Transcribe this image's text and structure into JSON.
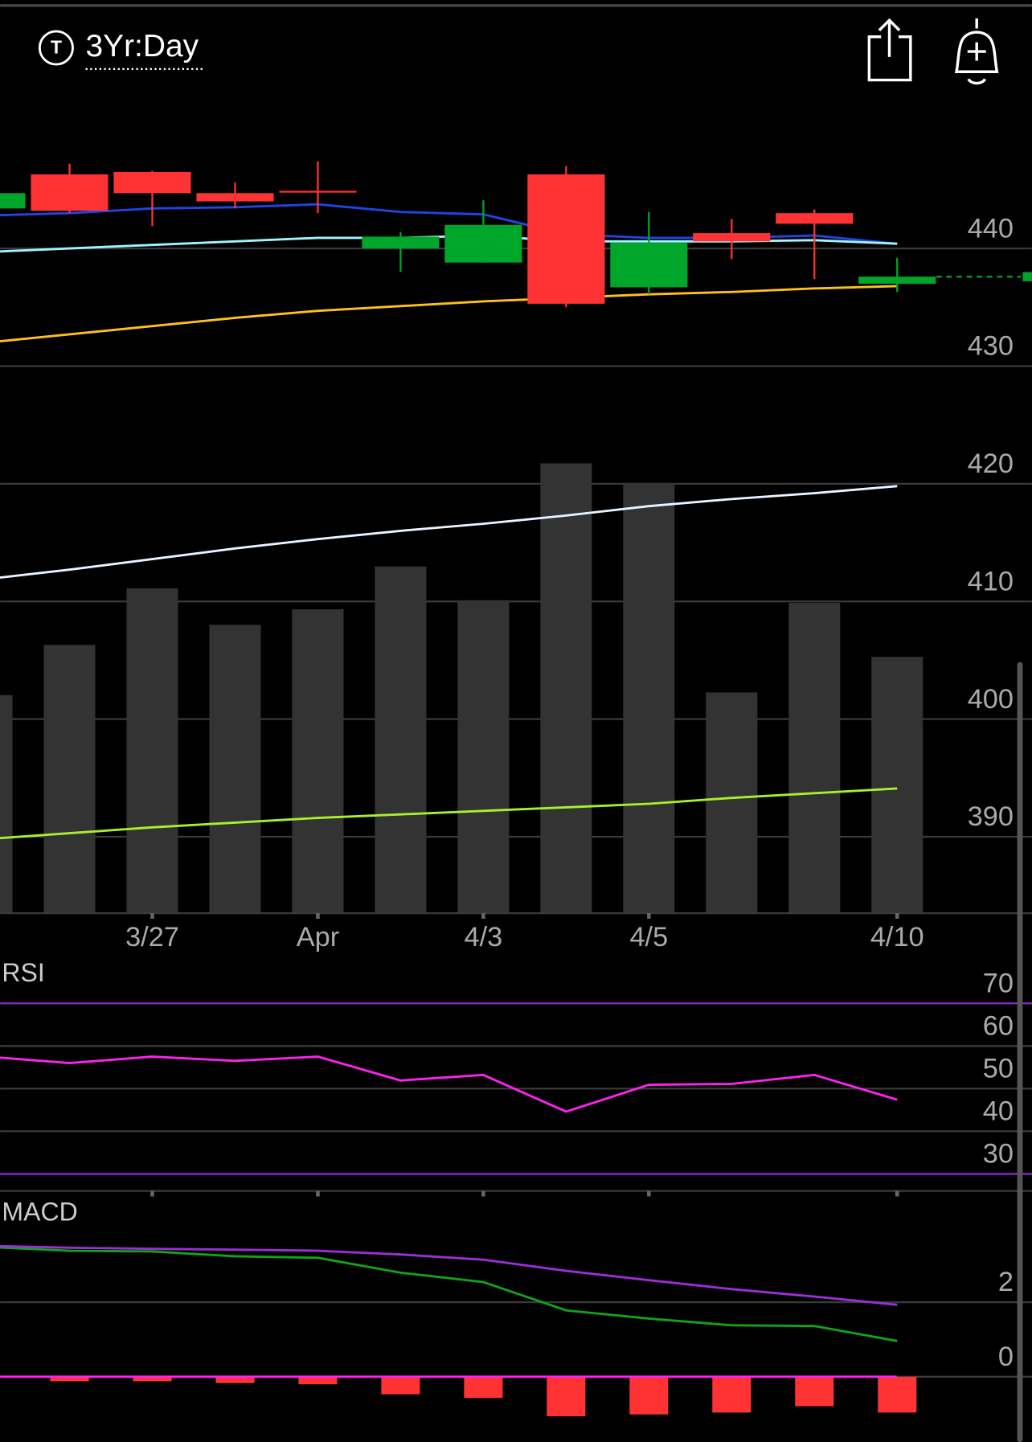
{
  "header": {
    "icon": "T",
    "period": "3Yr:Day"
  },
  "chart_data": [
    {
      "type": "candlestick",
      "categories": [
        null,
        null,
        "3/27",
        null,
        "Apr",
        null,
        "4/3",
        null,
        "4/5",
        null,
        null,
        "4/10"
      ],
      "open": [
        443.4,
        446.3,
        446.5,
        444.7,
        444.9,
        440.0,
        438.8,
        446.3,
        436.7,
        441.3,
        443.0,
        437.0
      ],
      "high": [
        444.7,
        447.2,
        446.6,
        445.6,
        447.4,
        441.4,
        444.1,
        447.0,
        443.1,
        442.5,
        443.3,
        439.2
      ],
      "low": [
        443.4,
        443.0,
        441.9,
        443.4,
        443.0,
        438.0,
        438.8,
        435.0,
        436.1,
        439.1,
        437.4,
        436.3
      ],
      "close": [
        444.7,
        443.2,
        444.7,
        444.0,
        444.8,
        441.0,
        442.0,
        435.3,
        440.5,
        440.6,
        442.1,
        437.6
      ],
      "up_color": "#00a62a",
      "down_color": "#ff3333",
      "series": [
        {
          "color": "#1f45e6",
          "values": [
            442.8,
            443.0,
            443.4,
            443.5,
            443.75,
            443.1,
            442.9,
            441.2,
            440.9,
            440.9,
            441.1,
            440.4
          ]
        },
        {
          "color": "#9ff4ff",
          "values": [
            439.7,
            440.0,
            440.3,
            440.6,
            440.9,
            440.9,
            441.1,
            440.6,
            440.6,
            440.6,
            440.7,
            440.4
          ]
        },
        {
          "color": "#ffc21a",
          "values": [
            432.0,
            432.7,
            433.4,
            434.1,
            434.7,
            435.1,
            435.5,
            435.8,
            436.1,
            436.3,
            436.6,
            436.8
          ]
        },
        {
          "color": "#e8f4ff",
          "values": [
            411.9,
            412.7,
            413.6,
            414.5,
            415.3,
            416.0,
            416.6,
            417.3,
            418.1,
            418.7,
            419.2,
            419.8
          ]
        },
        {
          "color": "#a8f02a",
          "values": [
            389.8,
            390.3,
            390.8,
            391.2,
            391.6,
            391.9,
            392.2,
            392.5,
            392.8,
            393.3,
            393.7,
            394.1
          ]
        }
      ],
      "volume": {
        "color": "#333333",
        "values": [
          239,
          294,
          356,
          316,
          333,
          380,
          343,
          493,
          471,
          242,
          340,
          281
        ],
        "ylim": [
          0,
          900
        ]
      },
      "last_price": 437.6,
      "ylim": [
        383.5,
        453.3
      ],
      "yticks": [
        390,
        400,
        410,
        420,
        430,
        440
      ],
      "grid": true
    },
    {
      "type": "line",
      "title": "RSI",
      "series": [
        {
          "color": "#ff22ee",
          "values": [
            57.5,
            56.0,
            57.5,
            56.5,
            57.5,
            51.9,
            53.2,
            44.6,
            50.9,
            51.1,
            53.2,
            47.4
          ]
        }
      ],
      "ylim": [
        26,
        81
      ],
      "yticks": [
        30,
        40,
        50,
        60,
        70
      ],
      "limit_line_color": "#8a2bd0",
      "grid": true
    },
    {
      "type": "line",
      "title": "MACD",
      "series": [
        {
          "color": "#11a31a",
          "values": [
            3.48,
            3.38,
            3.36,
            3.23,
            3.19,
            2.79,
            2.54,
            1.78,
            1.56,
            1.38,
            1.36,
            0.96
          ]
        },
        {
          "color": "#9a2fd8",
          "values": [
            3.51,
            3.46,
            3.43,
            3.41,
            3.38,
            3.28,
            3.14,
            2.84,
            2.59,
            2.35,
            2.15,
            1.93
          ]
        }
      ],
      "histogram": {
        "color": "#ff3333",
        "values": [
          null,
          -0.12,
          -0.12,
          -0.17,
          -0.2,
          -0.47,
          -0.57,
          -1.06,
          -1.01,
          -0.96,
          -0.79,
          -0.96
        ]
      },
      "zero_line_color": "#ff22ee",
      "ylim": [
        -1.75,
        4.86
      ],
      "yticks": [
        0,
        2
      ],
      "grid": true
    }
  ]
}
